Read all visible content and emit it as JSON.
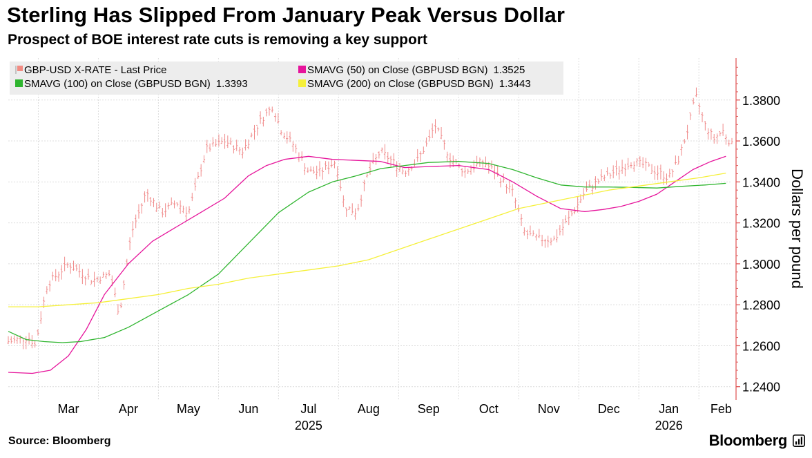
{
  "chart_data": {
    "type": "line",
    "title": "Sterling Has Slipped From January Peak Versus Dollar",
    "subtitle": "Prospect of BOE interest rate cuts is removing a key support",
    "ylabel": "Dollars per pound",
    "ylim": [
      1.2335,
      1.4005
    ],
    "yticks": [
      {
        "value": 1.24,
        "label": "1.2400"
      },
      {
        "value": 1.26,
        "label": "1.2600"
      },
      {
        "value": 1.28,
        "label": "1.2800"
      },
      {
        "value": 1.3,
        "label": "1.3000"
      },
      {
        "value": 1.32,
        "label": "1.3200"
      },
      {
        "value": 1.34,
        "label": "1.3400"
      },
      {
        "value": 1.36,
        "label": "1.3600"
      },
      {
        "value": 1.38,
        "label": "1.3800"
      }
    ],
    "x_domain": [
      0,
      12.05
    ],
    "month_labels": [
      {
        "pos": 1,
        "label": "Mar"
      },
      {
        "pos": 2,
        "label": "Apr"
      },
      {
        "pos": 3,
        "label": "May"
      },
      {
        "pos": 4,
        "label": "Jun"
      },
      {
        "pos": 5,
        "label": "Jul"
      },
      {
        "pos": 6,
        "label": "Aug"
      },
      {
        "pos": 7,
        "label": "Sep"
      },
      {
        "pos": 8,
        "label": "Oct"
      },
      {
        "pos": 9,
        "label": "Nov"
      },
      {
        "pos": 10,
        "label": "Dec"
      },
      {
        "pos": 11,
        "label": "Jan"
      },
      {
        "pos": 11.87,
        "label": "Feb"
      }
    ],
    "year_labels": [
      {
        "pos": 5,
        "label": "2025"
      },
      {
        "pos": 11,
        "label": "2026"
      }
    ],
    "gridline_positions": [
      0.5,
      1.5,
      2.5,
      3.5,
      4.5,
      5.5,
      6.5,
      7.5,
      8.5,
      9.5,
      10.5,
      11.5
    ],
    "legend": [
      {
        "label": "GBP-USD X-RATE - Last Price",
        "value": "",
        "color": "#f28b82",
        "marker": "bar"
      },
      {
        "label": "SMAVG (50)  on Close (GBPUSD BGN)",
        "value": "1.3525",
        "color": "#e6149b",
        "marker": "square"
      },
      {
        "label": "SMAVG (100)  on Close (GBPUSD BGN)",
        "value": "1.3393",
        "color": "#2fb52f",
        "marker": "square"
      },
      {
        "label": "SMAVG (200)  on Close (GBPUSD BGN)",
        "value": "1.3443",
        "color": "#f5f03a",
        "marker": "square"
      }
    ],
    "price_anchors": {
      "x": [
        0.0,
        0.35,
        0.45,
        0.65,
        1.0,
        1.4,
        1.7,
        1.85,
        2.05,
        2.3,
        2.55,
        2.8,
        3.0,
        3.3,
        3.6,
        3.9,
        4.2,
        4.4,
        4.55,
        4.75,
        5.0,
        5.2,
        5.45,
        5.6,
        5.8,
        6.0,
        6.2,
        6.4,
        6.6,
        6.8,
        7.0,
        7.1,
        7.35,
        7.6,
        7.9,
        8.1,
        8.4,
        8.6,
        8.85,
        9.1,
        9.4,
        9.6,
        9.8,
        10.1,
        10.4,
        10.6,
        10.8,
        11.0,
        11.15,
        11.3,
        11.45,
        11.6,
        11.75,
        11.9,
        12.05
      ],
      "y": [
        1.262,
        1.264,
        1.26,
        1.29,
        1.3,
        1.292,
        1.295,
        1.275,
        1.315,
        1.335,
        1.325,
        1.33,
        1.325,
        1.356,
        1.36,
        1.355,
        1.37,
        1.377,
        1.365,
        1.358,
        1.345,
        1.345,
        1.35,
        1.328,
        1.325,
        1.345,
        1.355,
        1.35,
        1.345,
        1.35,
        1.36,
        1.368,
        1.352,
        1.345,
        1.35,
        1.345,
        1.335,
        1.315,
        1.312,
        1.312,
        1.325,
        1.335,
        1.34,
        1.345,
        1.35,
        1.348,
        1.345,
        1.342,
        1.35,
        1.364,
        1.382,
        1.368,
        1.361,
        1.365,
        1.358
      ]
    },
    "series": [
      {
        "name": "SMAVG (50)",
        "color": "#e6149b",
        "x": [
          0.0,
          0.4,
          0.7,
          1.0,
          1.3,
          1.6,
          2.0,
          2.4,
          2.8,
          3.2,
          3.6,
          4.0,
          4.3,
          4.6,
          5.0,
          5.4,
          5.8,
          6.2,
          6.6,
          7.0,
          7.5,
          8.0,
          8.4,
          8.8,
          9.2,
          9.6,
          9.9,
          10.2,
          10.5,
          10.8,
          11.1,
          11.4,
          11.7,
          11.95
        ],
        "values": [
          1.247,
          1.2465,
          1.248,
          1.255,
          1.268,
          1.285,
          1.3,
          1.311,
          1.318,
          1.325,
          1.332,
          1.343,
          1.348,
          1.351,
          1.3525,
          1.351,
          1.3505,
          1.35,
          1.347,
          1.3475,
          1.348,
          1.346,
          1.34,
          1.333,
          1.327,
          1.3255,
          1.3265,
          1.328,
          1.3305,
          1.334,
          1.34,
          1.346,
          1.35,
          1.3525
        ]
      },
      {
        "name": "SMAVG (100)",
        "color": "#2fb52f",
        "x": [
          0.0,
          0.3,
          0.6,
          0.9,
          1.2,
          1.6,
          2.0,
          2.5,
          3.0,
          3.5,
          4.0,
          4.5,
          5.0,
          5.4,
          5.8,
          6.2,
          6.6,
          7.0,
          7.5,
          8.0,
          8.4,
          8.8,
          9.2,
          9.6,
          10.0,
          10.4,
          10.8,
          11.2,
          11.6,
          11.95
        ],
        "values": [
          1.267,
          1.263,
          1.262,
          1.2615,
          1.262,
          1.264,
          1.269,
          1.277,
          1.285,
          1.295,
          1.31,
          1.325,
          1.335,
          1.34,
          1.343,
          1.3465,
          1.348,
          1.3495,
          1.35,
          1.349,
          1.346,
          1.342,
          1.3385,
          1.3375,
          1.3375,
          1.3373,
          1.337,
          1.3378,
          1.3385,
          1.3393
        ]
      },
      {
        "name": "SMAVG (200)",
        "color": "#f5f03a",
        "x": [
          0.0,
          0.5,
          1.0,
          1.5,
          2.0,
          2.5,
          3.0,
          3.5,
          4.0,
          4.5,
          5.0,
          5.5,
          6.0,
          6.5,
          7.0,
          7.5,
          8.0,
          8.5,
          9.0,
          9.5,
          10.0,
          10.5,
          11.0,
          11.5,
          11.95
        ],
        "values": [
          1.279,
          1.279,
          1.28,
          1.281,
          1.283,
          1.285,
          1.288,
          1.29,
          1.293,
          1.295,
          1.297,
          1.299,
          1.302,
          1.307,
          1.312,
          1.317,
          1.322,
          1.327,
          1.33,
          1.333,
          1.336,
          1.338,
          1.34,
          1.342,
          1.3443
        ]
      }
    ]
  },
  "source": "Source: Bloomberg",
  "brand": "Bloomberg"
}
